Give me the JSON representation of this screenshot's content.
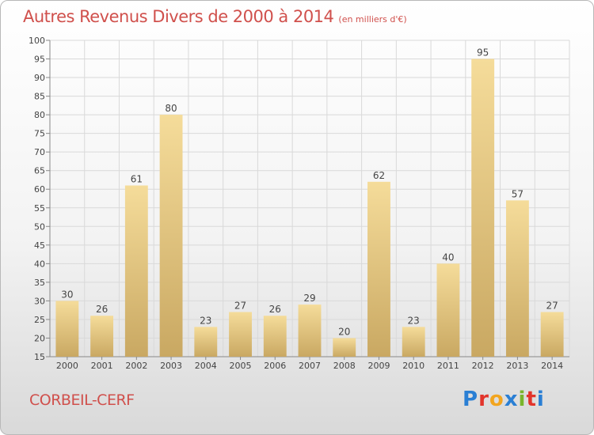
{
  "title": "Autres Revenus Divers de 2000 à 2014",
  "unit_note": "(en milliers d'€)",
  "commune": "CORBEIL-CERF",
  "brand": {
    "letters": [
      "P",
      "r",
      "o",
      "x",
      "i",
      "t",
      "i"
    ],
    "colors": [
      "#2a7fd4",
      "#e2342b",
      "#f2a51f",
      "#2a7fd4",
      "#79b52c",
      "#e2342b",
      "#2a7fd4"
    ]
  },
  "colors": {
    "title": "#d0504c",
    "bar_light": "#f5dc9a",
    "bar_dark": "#c9a862",
    "grid": "#d9d9d9"
  },
  "chart_data": {
    "type": "bar",
    "categories": [
      "2000",
      "2001",
      "2002",
      "2003",
      "2004",
      "2005",
      "2006",
      "2007",
      "2008",
      "2009",
      "2010",
      "2011",
      "2012",
      "2013",
      "2014"
    ],
    "values": [
      30,
      26,
      61,
      80,
      23,
      27,
      26,
      29,
      20,
      62,
      23,
      40,
      95,
      57,
      27
    ],
    "ylim": [
      15,
      100
    ],
    "yticks": [
      15,
      20,
      25,
      30,
      35,
      40,
      45,
      50,
      55,
      60,
      65,
      70,
      75,
      80,
      85,
      90,
      95,
      100
    ],
    "grid": true,
    "xlabel": "",
    "ylabel": ""
  }
}
